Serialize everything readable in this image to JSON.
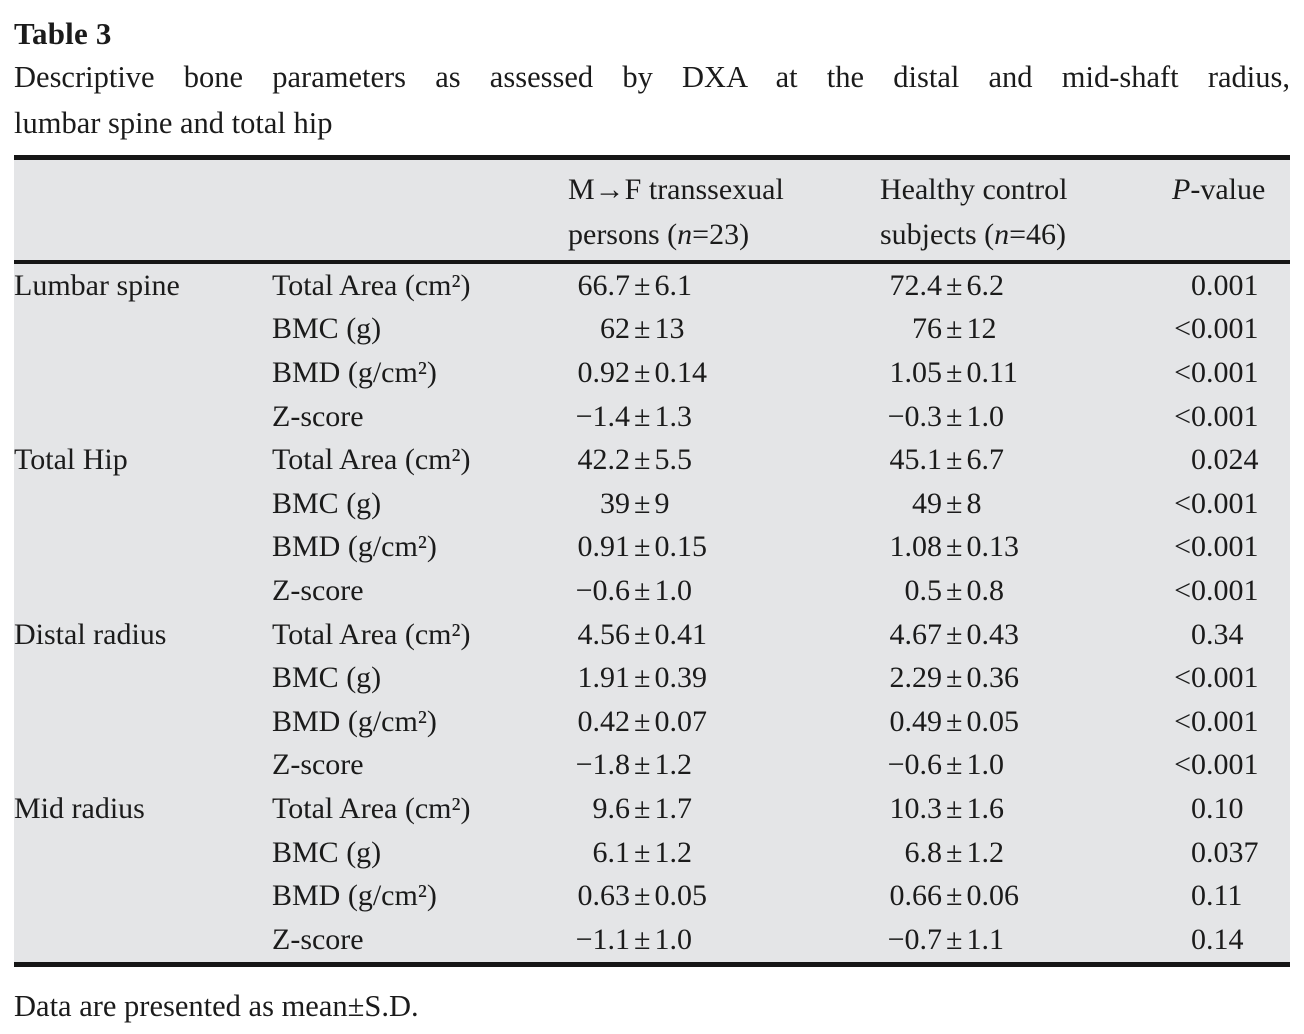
{
  "title": "Table 3",
  "caption_line1": "Descriptive bone parameters as assessed by DXA at the distal and mid-shaft radius,",
  "caption_line2": "lumbar spine and total hip",
  "footnote": "Data are presented as mean±S.D.",
  "colors": {
    "table_background": "#e4e5e7",
    "rule": "#161616",
    "text": "#1b1b1b"
  },
  "table": {
    "columns": {
      "group1": {
        "line1": "M→F transsexual",
        "line2_pre": "persons (",
        "line2_n": "n",
        "line2_post": "=23)"
      },
      "group2": {
        "line1": "Healthy control",
        "line2_pre": "subjects (",
        "line2_n": "n",
        "line2_post": "=46)"
      },
      "pvalue": {
        "italic": "P",
        "rest": "-value"
      }
    },
    "sections": [
      {
        "site": "Lumbar spine",
        "rows": [
          {
            "param": "Total Area (cm²)",
            "mf": "66.7±6.1",
            "hc": "72.4±6.2",
            "p": "0.001"
          },
          {
            "param": "BMC (g)",
            "mf": "62±13",
            "hc": "76±12",
            "p": "<0.001"
          },
          {
            "param": "BMD (g/cm²)",
            "mf": "0.92±0.14",
            "hc": "1.05±0.11",
            "p": "<0.001"
          },
          {
            "param": "Z-score",
            "mf": "−1.4±1.3",
            "hc": "−0.3±1.0",
            "p": "<0.001"
          }
        ]
      },
      {
        "site": "Total Hip",
        "rows": [
          {
            "param": "Total Area (cm²)",
            "mf": "42.2±5.5",
            "hc": "45.1±6.7",
            "p": "0.024"
          },
          {
            "param": "BMC (g)",
            "mf": "39±9",
            "hc": "49±8",
            "p": "<0.001"
          },
          {
            "param": "BMD (g/cm²)",
            "mf": "0.91±0.15",
            "hc": "1.08±0.13",
            "p": "<0.001"
          },
          {
            "param": "Z-score",
            "mf": "−0.6±1.0",
            "hc": "0.5±0.8",
            "p": "<0.001"
          }
        ]
      },
      {
        "site": "Distal radius",
        "rows": [
          {
            "param": "Total Area (cm²)",
            "mf": "4.56±0.41",
            "hc": "4.67±0.43",
            "p": "0.34"
          },
          {
            "param": "BMC (g)",
            "mf": "1.91±0.39",
            "hc": "2.29±0.36",
            "p": "<0.001"
          },
          {
            "param": "BMD (g/cm²)",
            "mf": "0.42±0.07",
            "hc": "0.49±0.05",
            "p": "<0.001"
          },
          {
            "param": "Z-score",
            "mf": "−1.8±1.2",
            "hc": "−0.6±1.0",
            "p": "<0.001"
          }
        ]
      },
      {
        "site": "Mid radius",
        "rows": [
          {
            "param": "Total Area (cm²)",
            "mf": "9.6±1.7",
            "hc": "10.3±1.6",
            "p": "0.10"
          },
          {
            "param": "BMC (g)",
            "mf": "6.1±1.2",
            "hc": "6.8±1.2",
            "p": "0.037"
          },
          {
            "param": "BMD (g/cm²)",
            "mf": "0.63±0.05",
            "hc": "0.66±0.06",
            "p": "0.11"
          },
          {
            "param": "Z-score",
            "mf": "−1.1±1.0",
            "hc": "−0.7±1.1",
            "p": "0.14"
          }
        ]
      }
    ]
  }
}
